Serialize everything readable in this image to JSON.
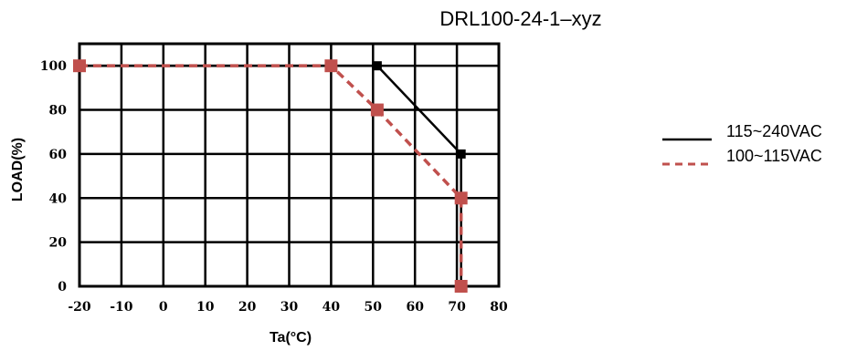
{
  "chart_data": {
    "type": "line",
    "title": "DRL100-24-1–xyz",
    "xlabel": "Ta(°C)",
    "ylabel": "LOAD(%)",
    "xlim": [
      -20,
      80
    ],
    "ylim": [
      0,
      110
    ],
    "xticks": [
      -20,
      -10,
      0,
      10,
      20,
      30,
      40,
      50,
      60,
      70,
      80
    ],
    "yticks": [
      0,
      20,
      40,
      60,
      80,
      100
    ],
    "grid": true,
    "legend_position": "right",
    "series": [
      {
        "name": "115~240VAC",
        "style": "solid",
        "color": "#000000",
        "x": [
          -20,
          40,
          51,
          71,
          71
        ],
        "y": [
          100,
          100,
          100,
          60,
          0
        ]
      },
      {
        "name": "100~115VAC",
        "style": "dashed",
        "color": "#c0504d",
        "x": [
          -20,
          40,
          51,
          71,
          71
        ],
        "y": [
          100,
          100,
          80,
          40,
          0
        ]
      }
    ]
  }
}
